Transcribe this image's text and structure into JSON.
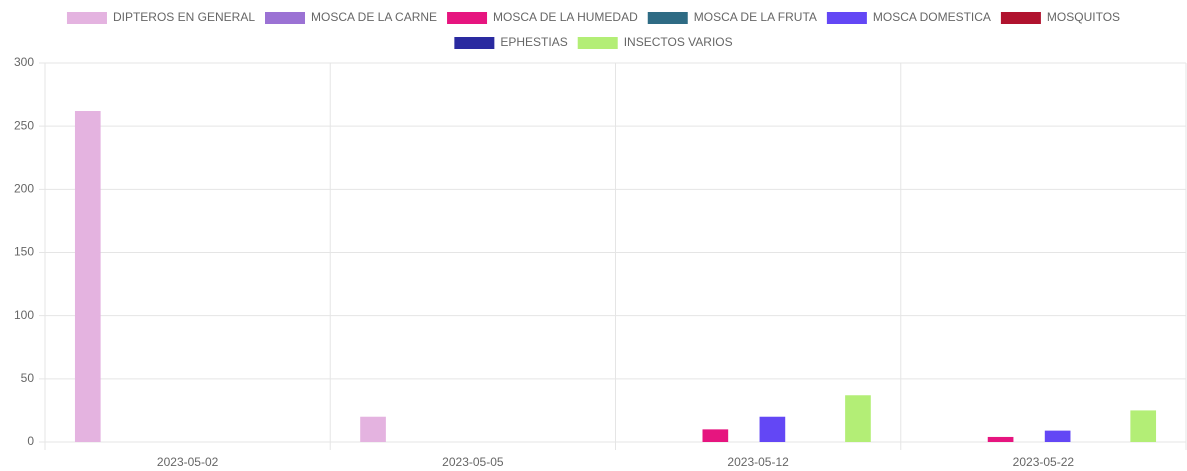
{
  "chart_data": {
    "type": "bar",
    "categories": [
      "2023-05-02",
      "2023-05-05",
      "2023-05-12",
      "2023-05-22"
    ],
    "series": [
      {
        "name": "DIPTEROS EN GENERAL",
        "color": "#e4b3e0",
        "values": [
          262,
          20,
          0,
          0
        ]
      },
      {
        "name": "MOSCA DE LA CARNE",
        "color": "#9b72d4",
        "values": [
          0,
          0,
          0,
          0
        ]
      },
      {
        "name": "MOSCA DE LA HUMEDAD",
        "color": "#e6157f",
        "values": [
          0,
          0,
          10,
          4
        ]
      },
      {
        "name": "MOSCA DE LA FRUTA",
        "color": "#2e6b84",
        "values": [
          0,
          0,
          0,
          0
        ]
      },
      {
        "name": "MOSCA DOMESTICA",
        "color": "#6347f5",
        "values": [
          0,
          0,
          20,
          9
        ]
      },
      {
        "name": "MOSQUITOS",
        "color": "#b0122e",
        "values": [
          0,
          0,
          0,
          0
        ]
      },
      {
        "name": "EPHESTIAS",
        "color": "#2a2aa0",
        "values": [
          0,
          0,
          0,
          0
        ]
      },
      {
        "name": "INSECTOS VARIOS",
        "color": "#b3ee76",
        "values": [
          0,
          0,
          37,
          25
        ]
      }
    ],
    "ylim": [
      0,
      300
    ],
    "yticks": [
      0,
      50,
      100,
      150,
      200,
      250,
      300
    ],
    "grid": true,
    "legend": "top"
  }
}
